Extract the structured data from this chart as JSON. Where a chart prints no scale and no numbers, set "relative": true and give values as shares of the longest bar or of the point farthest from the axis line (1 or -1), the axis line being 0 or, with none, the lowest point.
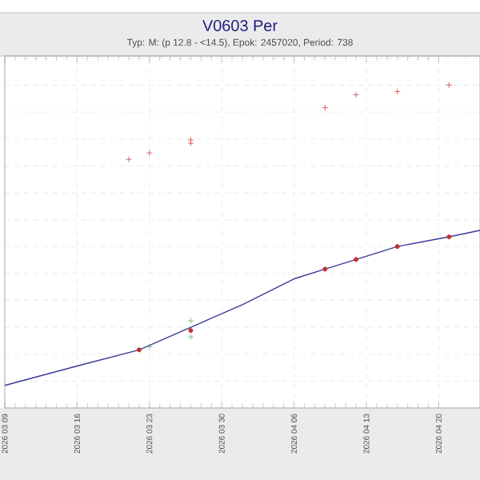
{
  "chart_data": {
    "type": "scatter",
    "title": "V0603 Per",
    "subtitle": "Typ: M: (p 12.8 - <14.5), Epok: 2457020, Period: 738",
    "relative": true,
    "grid": true,
    "xlim": [
      "2026-03-09",
      "2026-04-24"
    ],
    "xticks": [
      {
        "value": "2026-03-09",
        "label": "2026 03 09"
      },
      {
        "value": "2026-03-16",
        "label": "2026 03 16"
      },
      {
        "value": "2026-03-23",
        "label": "2026 03 23"
      },
      {
        "value": "2026-03-30",
        "label": "2026 03 30"
      },
      {
        "value": "2026-04-06",
        "label": "2026 04 06"
      },
      {
        "value": "2026-04-13",
        "label": "2026 04 13"
      },
      {
        "value": "2026-04-20",
        "label": "2026 04 20"
      }
    ],
    "series": [
      {
        "type": "line",
        "color": "#3a3a9a",
        "marker": "none",
        "x": [
          "2026-03-09",
          "2026-03-16",
          "2026-03-22",
          "2026-03-27",
          "2026-04-01",
          "2026-04-06",
          "2026-04-09",
          "2026-04-12",
          "2026-04-16",
          "2026-04-21",
          "2026-04-24"
        ],
        "values": [
          0.07,
          0.13,
          0.18,
          0.25,
          0.32,
          0.4,
          0.43,
          0.46,
          0.5,
          0.53,
          0.55
        ]
      },
      {
        "type": "scatter",
        "color": "#c03030",
        "marker": "circle",
        "x": [
          "2026-03-22",
          "2026-03-27",
          "2026-04-09",
          "2026-04-12",
          "2026-04-16",
          "2026-04-21"
        ],
        "values": [
          0.18,
          0.24,
          0.43,
          0.46,
          0.5,
          0.53
        ]
      },
      {
        "type": "scatter",
        "color": "#60b060",
        "marker": "cross",
        "x": [
          "2026-03-23",
          "2026-03-27",
          "2026-03-27"
        ],
        "values": [
          0.19,
          0.27,
          0.22
        ]
      },
      {
        "type": "scatter",
        "color": "#d04040",
        "marker": "cross",
        "x": [
          "2026-03-21",
          "2026-03-23",
          "2026-03-27",
          "2026-03-27",
          "2026-04-09",
          "2026-04-12",
          "2026-04-16",
          "2026-04-21"
        ],
        "values": [
          0.77,
          0.79,
          0.83,
          0.82,
          0.93,
          0.97,
          0.98,
          1.0
        ]
      }
    ]
  }
}
